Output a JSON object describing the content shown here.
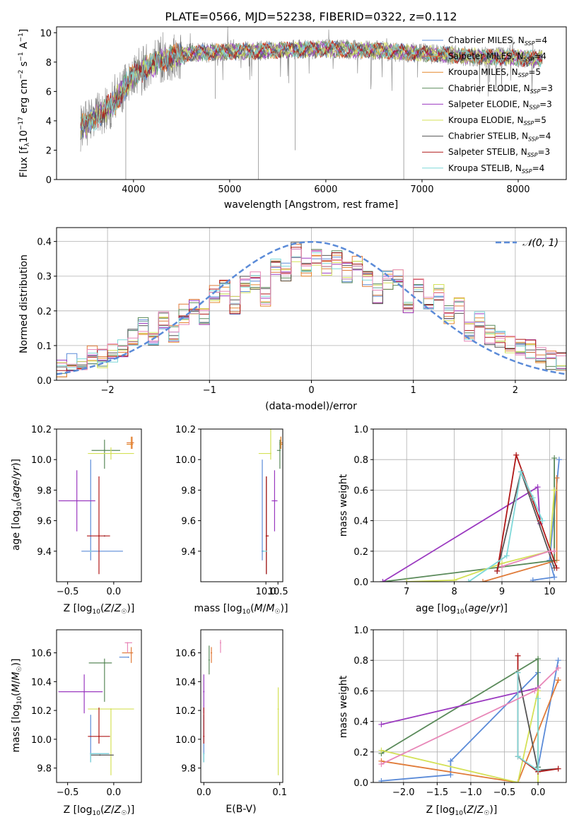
{
  "chart_data": [
    {
      "id": "spectrum",
      "type": "line",
      "title": "PLATE=0566, MJD=52238, FIBERID=0322, z=0.112",
      "xlabel": "wavelength [Angstrom, rest frame]",
      "ylabel": "Flux [f_λ10^-17 erg cm^-2 s^-1 A^-1]",
      "xlim": [
        3200,
        8500
      ],
      "ylim": [
        0,
        10.4
      ],
      "xticks": [
        4000,
        5000,
        6000,
        7000,
        8000
      ],
      "yticks": [
        0,
        2,
        4,
        6,
        8,
        10
      ],
      "grid": false,
      "legend_position": "right",
      "data_color": "#808080",
      "continuum": {
        "x": [
          3450,
          3600,
          3800,
          4000,
          4300,
          4600,
          5000,
          5500,
          6000,
          6500,
          7000,
          7500,
          8000,
          8250
        ],
        "y": [
          3.5,
          4.2,
          5.2,
          7.2,
          8.2,
          8.6,
          8.7,
          8.8,
          8.9,
          8.8,
          8.6,
          8.4,
          8.3,
          8.2
        ]
      },
      "series": [
        {
          "name": "Chabrier MILES, N_SSP=4",
          "color": "#5B8BD8"
        },
        {
          "name": "Salpeter MILES, N_SSP=4",
          "color": "#E07B39"
        },
        {
          "name": "Kroupa MILES, N_SSP=5",
          "color": "#E5882E"
        },
        {
          "name": "Chabrier ELODIE, N_SSP=3",
          "color": "#5A8A5A"
        },
        {
          "name": "Salpeter ELODIE, N_SSP=3",
          "color": "#9B3AC0"
        },
        {
          "name": "Kroupa ELODIE, N_SSP=5",
          "color": "#D4E157"
        },
        {
          "name": "Chabrier STELIB, N_SSP=4",
          "color": "#555555"
        },
        {
          "name": "Salpeter STELIB, N_SSP=3",
          "color": "#B01818"
        },
        {
          "name": "Kroupa STELIB, N_SSP=4",
          "color": "#7FD8D8"
        }
      ]
    },
    {
      "id": "residuals",
      "type": "line",
      "xlabel": "(data-model)/error",
      "ylabel": "Normed distribution",
      "xlim": [
        -2.5,
        2.5
      ],
      "ylim": [
        0,
        0.44
      ],
      "xticks": [
        -2,
        -1,
        0,
        1,
        2
      ],
      "yticks": [
        0.0,
        0.1,
        0.2,
        0.3,
        0.4
      ],
      "grid": true,
      "legend": "N(0,1)",
      "legend_position": "top-right",
      "gauss_color": "#5B8BD8",
      "bins": [
        -2.5,
        -2.4,
        -2.3,
        -2.2,
        -2.1,
        -2.0,
        -1.9,
        -1.8,
        -1.7,
        -1.6,
        -1.5,
        -1.4,
        -1.3,
        -1.2,
        -1.1,
        -1.0,
        -0.9,
        -0.8,
        -0.7,
        -0.6,
        -0.5,
        -0.4,
        -0.3,
        -0.2,
        -0.1,
        0.0,
        0.1,
        0.2,
        0.3,
        0.4,
        0.5,
        0.6,
        0.7,
        0.8,
        0.9,
        1.0,
        1.1,
        1.2,
        1.3,
        1.4,
        1.5,
        1.6,
        1.7,
        1.8,
        1.9,
        2.0,
        2.1,
        2.2,
        2.3,
        2.4,
        2.5
      ],
      "hist_base": [
        0.03,
        0.05,
        0.06,
        0.07,
        0.06,
        0.08,
        0.09,
        0.13,
        0.16,
        0.12,
        0.17,
        0.13,
        0.19,
        0.21,
        0.18,
        0.25,
        0.27,
        0.22,
        0.27,
        0.29,
        0.24,
        0.33,
        0.31,
        0.37,
        0.33,
        0.36,
        0.33,
        0.35,
        0.31,
        0.34,
        0.29,
        0.25,
        0.29,
        0.3,
        0.22,
        0.28,
        0.22,
        0.25,
        0.19,
        0.22,
        0.14,
        0.17,
        0.13,
        0.12,
        0.1,
        0.1,
        0.09,
        0.08,
        0.06,
        0.05
      ]
    },
    {
      "id": "age_vs_Z",
      "type": "scatter",
      "xlabel": "Z [log10(Z/Z☉)]",
      "ylabel": "age [log10(age/yr)]",
      "xlim": [
        -0.62,
        0.3
      ],
      "ylim": [
        9.2,
        10.2
      ],
      "xticks": [
        -0.5,
        0.0
      ],
      "yticks": [
        9.4,
        9.6,
        9.8,
        10.0,
        10.2
      ],
      "points": [
        {
          "x": -0.25,
          "y": 9.4,
          "xerr": [
            0.1,
            0.35
          ],
          "yerr": [
            0.06,
            0.6
          ],
          "color": "#5B8BD8"
        },
        {
          "x": 0.2,
          "y": 10.11,
          "xerr": [
            0.06,
            0.02
          ],
          "yerr": [
            0.04,
            0.04
          ],
          "color": "#E07B39"
        },
        {
          "x": 0.19,
          "y": 10.1,
          "xerr": [
            0.05,
            0.02
          ],
          "yerr": [
            0.03,
            0.05
          ],
          "color": "#E5882E"
        },
        {
          "x": -0.1,
          "y": 10.06,
          "xerr": [
            0.14,
            0.17
          ],
          "yerr": [
            0.12,
            0.07
          ],
          "color": "#5A8A5A"
        },
        {
          "x": -0.4,
          "y": 9.73,
          "xerr": [
            0.2,
            0.2
          ],
          "yerr": [
            0.2,
            0.2
          ],
          "color": "#9B3AC0"
        },
        {
          "x": -0.03,
          "y": 10.04,
          "xerr": [
            0.25,
            0.25
          ],
          "yerr": [
            0.04,
            0.04
          ],
          "color": "#D4E157"
        },
        {
          "x": -0.1,
          "y": 9.5,
          "xerr": [
            0.0,
            0.0
          ],
          "yerr": [
            0.0,
            0.0
          ],
          "color": "#555555"
        },
        {
          "x": -0.16,
          "y": 9.5,
          "xerr": [
            0.13,
            0.12
          ],
          "yerr": [
            0.25,
            0.39
          ],
          "color": "#B01818"
        },
        {
          "x": -0.25,
          "y": 9.4,
          "xerr": [
            0.0,
            0.0
          ],
          "yerr": [
            0.0,
            0.0
          ],
          "color": "#7FD8D8"
        }
      ]
    },
    {
      "id": "age_vs_mass",
      "type": "scatter",
      "xlabel": "mass [log10(M/M☉)]",
      "xlim": [
        7.3,
        10.7
      ],
      "ylim": [
        9.2,
        10.2
      ],
      "xticks": [
        10.0,
        10.5
      ],
      "yticks": [
        9.4,
        9.6,
        9.8,
        10.0,
        10.2
      ],
      "points": [
        {
          "x": 9.85,
          "y": 9.4,
          "xerr": [
            0.0,
            0.0
          ],
          "yerr": [
            0.06,
            0.6
          ],
          "color": "#5B8BD8"
        },
        {
          "x": 10.62,
          "y": 10.11,
          "xerr": [
            0.06,
            0.06
          ],
          "yerr": [
            0.04,
            0.04
          ],
          "color": "#E07B39"
        },
        {
          "x": 10.62,
          "y": 10.1,
          "xerr": [
            0.06,
            0.06
          ],
          "yerr": [
            0.03,
            0.05
          ],
          "color": "#E5882E"
        },
        {
          "x": 10.58,
          "y": 10.06,
          "xerr": [
            0.12,
            0.03
          ],
          "yerr": [
            0.12,
            0.07
          ],
          "color": "#5A8A5A"
        },
        {
          "x": 10.36,
          "y": 9.73,
          "xerr": [
            0.12,
            0.12
          ],
          "yerr": [
            0.2,
            0.2
          ],
          "color": "#9B3AC0"
        },
        {
          "x": 10.2,
          "y": 10.04,
          "xerr": [
            0.5,
            0.0
          ],
          "yerr": [
            0.04,
            0.76
          ],
          "color": "#D4E157"
        },
        {
          "x": 10.02,
          "y": 9.5,
          "xerr": [
            0.0,
            0.0
          ],
          "yerr": [
            0.25,
            0.39
          ],
          "color": "#555555"
        },
        {
          "x": 10.02,
          "y": 9.5,
          "xerr": [
            0.0,
            0.1
          ],
          "yerr": [
            0.25,
            0.39
          ],
          "color": "#B01818"
        },
        {
          "x": 9.9,
          "y": 9.4,
          "xerr": [
            0.0,
            0.15
          ],
          "yerr": [
            0.0,
            0.0
          ],
          "color": "#7FD8D8"
        }
      ]
    },
    {
      "id": "mw_vs_age",
      "type": "line",
      "xlabel": "age [log10(age/yr)]",
      "ylabel": "mass weight",
      "xlim": [
        6.3,
        10.35
      ],
      "ylim": [
        0,
        1
      ],
      "xticks": [
        7,
        8,
        9,
        10
      ],
      "yticks": [
        0.0,
        0.2,
        0.4,
        0.6,
        0.8,
        1.0
      ],
      "grid": true,
      "series": [
        {
          "color": "#5B8BD8",
          "x": [
            9.65,
            10.1,
            10.0,
            10.2
          ],
          "y": [
            0.01,
            0.03,
            0.14,
            0.8
          ]
        },
        {
          "color": "#E07B39",
          "x": [
            8.6,
            10.15,
            10.15
          ],
          "y": [
            0.0,
            0.14,
            0.68
          ]
        },
        {
          "color": "#5A8A5A",
          "x": [
            6.5,
            10.1,
            10.1
          ],
          "y": [
            0.0,
            0.14,
            0.81
          ]
        },
        {
          "color": "#9B3AC0",
          "x": [
            6.5,
            9.75,
            9.8
          ],
          "y": [
            0.0,
            0.62,
            0.38
          ]
        },
        {
          "color": "#D4E157",
          "x": [
            7.0,
            8.0,
            9.0,
            10.0,
            10.1
          ],
          "y": [
            0.0,
            0.01,
            0.12,
            0.2,
            0.6
          ]
        },
        {
          "color": "#555555",
          "x": [
            8.9,
            9.4,
            10.1
          ],
          "y": [
            0.07,
            0.72,
            0.09
          ]
        },
        {
          "color": "#B01818",
          "x": [
            8.9,
            9.3,
            9.8,
            10.15
          ],
          "y": [
            0.07,
            0.83,
            0.4,
            0.09
          ]
        },
        {
          "color": "#7FD8D8",
          "x": [
            8.3,
            9.1,
            9.4,
            9.65,
            9.85
          ],
          "y": [
            0.0,
            0.17,
            0.72,
            0.55,
            0.4
          ]
        },
        {
          "color": "#E887B8",
          "x": [
            9.0,
            10.0,
            10.1
          ],
          "y": [
            0.1,
            0.2,
            0.2
          ]
        }
      ]
    },
    {
      "id": "mass_vs_Z",
      "type": "scatter",
      "xlabel": "Z [log10(Z/Z☉)]",
      "ylabel": "mass [log10(M/M☉)]",
      "xlim": [
        -0.62,
        0.3
      ],
      "ylim": [
        9.7,
        10.76
      ],
      "xticks": [
        -0.5,
        0.0
      ],
      "yticks": [
        9.8,
        10.0,
        10.2,
        10.4,
        10.6
      ],
      "points": [
        {
          "x": -0.25,
          "y": 9.9,
          "xerr": [
            0.0,
            0.2
          ],
          "yerr": [
            0.06,
            0.27
          ],
          "color": "#5B8BD8"
        },
        {
          "x": 0.19,
          "y": 10.6,
          "xerr": [
            0.1,
            0.02
          ],
          "yerr": [
            0.07,
            0.04
          ],
          "color": "#E07B39"
        },
        {
          "x": 0.16,
          "y": 10.57,
          "xerr": [
            0.1,
            0.0
          ],
          "yerr": [
            0.0,
            0.0
          ],
          "color": "#5B8BD8"
        },
        {
          "x": -0.1,
          "y": 10.53,
          "xerr": [
            0.17,
            0.08
          ],
          "yerr": [
            0.27,
            0.03
          ],
          "color": "#5A8A5A"
        },
        {
          "x": -0.32,
          "y": 10.33,
          "xerr": [
            0.28,
            0.2
          ],
          "yerr": [
            0.15,
            0.12
          ],
          "color": "#9B3AC0"
        },
        {
          "x": -0.03,
          "y": 10.21,
          "xerr": [
            0.25,
            0.25
          ],
          "yerr": [
            0.46,
            0.0
          ],
          "color": "#D4E157"
        },
        {
          "x": -0.16,
          "y": 10.02,
          "xerr": [
            0.12,
            0.12
          ],
          "yerr": [
            0.05,
            0.2
          ],
          "color": "#B01818"
        },
        {
          "x": -0.15,
          "y": 9.89,
          "xerr": [
            0.1,
            0.15
          ],
          "yerr": [
            0.0,
            0.0
          ],
          "color": "#555555"
        },
        {
          "x": -0.25,
          "y": 9.9,
          "xerr": [
            0.0,
            0.2
          ],
          "yerr": [
            0.06,
            0.0
          ],
          "color": "#7FD8D8"
        },
        {
          "x": 0.15,
          "y": 10.67,
          "xerr": [
            0.03,
            0.05
          ],
          "yerr": [
            0.07,
            0.0
          ],
          "color": "#E887B8"
        }
      ]
    },
    {
      "id": "mass_vs_EBV",
      "type": "scatter",
      "xlabel": "E(B-V)",
      "xlim": [
        -0.004,
        0.104
      ],
      "ylim": [
        9.7,
        10.76
      ],
      "xticks": [
        0.0,
        0.1
      ],
      "yticks": [
        9.8,
        10.0,
        10.2,
        10.4,
        10.6
      ],
      "points": [
        {
          "x": 0.0,
          "y": 9.9,
          "yerr": [
            0.06,
            0.27
          ],
          "color": "#5B8BD8"
        },
        {
          "x": 0.01,
          "y": 10.6,
          "yerr": [
            0.07,
            0.04
          ],
          "color": "#E07B39"
        },
        {
          "x": 0.0,
          "y": 10.33,
          "yerr": [
            0.15,
            0.12
          ],
          "color": "#9B3AC0"
        },
        {
          "x": 0.098,
          "y": 10.21,
          "yerr": [
            0.46,
            0.15
          ],
          "color": "#D4E157"
        },
        {
          "x": 0.0,
          "y": 10.02,
          "yerr": [
            0.05,
            0.2
          ],
          "color": "#B01818"
        },
        {
          "x": 0.0,
          "y": 9.9,
          "yerr": [
            0.06,
            0.0
          ],
          "color": "#7FD8D8"
        },
        {
          "x": 0.022,
          "y": 10.67,
          "yerr": [
            0.07,
            0.02
          ],
          "color": "#E887B8"
        },
        {
          "x": 0.007,
          "y": 10.55,
          "yerr": [
            0.1,
            0.1
          ],
          "color": "#5A8A5A"
        }
      ]
    },
    {
      "id": "mw_vs_Z",
      "type": "line",
      "xlabel": "Z [log10(Z/Z☉)]",
      "ylabel": "mass weight",
      "xlim": [
        -2.45,
        0.42
      ],
      "ylim": [
        0,
        1
      ],
      "xticks": [
        -2.0,
        -1.5,
        -1.0,
        -0.5,
        0.0
      ],
      "yticks": [
        0.0,
        0.2,
        0.4,
        0.6,
        0.8,
        1.0
      ],
      "grid": true,
      "series": [
        {
          "color": "#5B8BD8",
          "x": [
            -2.33,
            -1.3,
            -1.3,
            0.0,
            0.0,
            0.3
          ],
          "y": [
            0.01,
            0.05,
            0.14,
            0.72,
            0.1,
            0.8
          ]
        },
        {
          "color": "#E07B39",
          "x": [
            -2.33,
            -0.3,
            0.3,
            0.3
          ],
          "y": [
            0.14,
            0.0,
            0.67,
            0.67
          ]
        },
        {
          "color": "#5A8A5A",
          "x": [
            -2.33,
            0.0,
            0.0
          ],
          "y": [
            0.19,
            0.81,
            0.1
          ]
        },
        {
          "color": "#9B3AC0",
          "x": [
            -2.33,
            0.0
          ],
          "y": [
            0.38,
            0.62
          ]
        },
        {
          "color": "#D4E157",
          "x": [
            -2.33,
            -0.3,
            0.0,
            0.0
          ],
          "y": [
            0.21,
            0.0,
            0.6,
            0.0
          ]
        },
        {
          "color": "#555555",
          "x": [
            -0.3,
            0.0,
            0.3
          ],
          "y": [
            0.72,
            0.08,
            0.09
          ]
        },
        {
          "color": "#B01818",
          "x": [
            -0.3,
            -0.3,
            0.0,
            0.3
          ],
          "y": [
            0.83,
            0.17,
            0.07,
            0.09
          ]
        },
        {
          "color": "#7FD8D8",
          "x": [
            -0.3,
            -0.3,
            0.0,
            0.0
          ],
          "y": [
            0.72,
            0.17,
            0.08,
            0.55
          ]
        },
        {
          "color": "#E887B8",
          "x": [
            -2.33,
            -0.05,
            0.3
          ],
          "y": [
            0.12,
            0.6,
            0.75
          ]
        }
      ]
    }
  ]
}
